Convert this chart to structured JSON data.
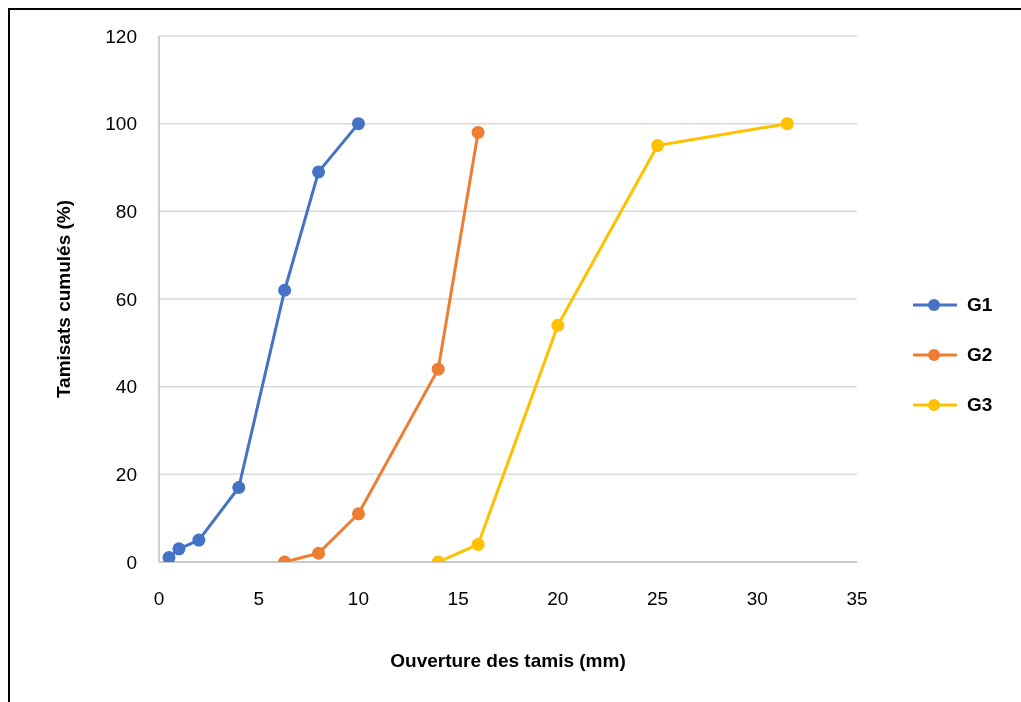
{
  "chart_data": {
    "type": "line",
    "xlabel": "Ouverture des tamis (mm)",
    "ylabel": "Tamisats cumulés (%)",
    "xlim": [
      0,
      35
    ],
    "xticks": [
      0,
      5,
      10,
      15,
      20,
      25,
      30,
      35
    ],
    "ylim": [
      0,
      120
    ],
    "yticks": [
      0,
      20,
      40,
      60,
      80,
      100,
      120
    ],
    "grid": "y",
    "legend": "right",
    "marker": "circle",
    "line_style": "solid",
    "series": [
      {
        "name": "G1",
        "color": "#4472c4",
        "x": [
          0.5,
          1,
          2,
          4,
          6.3,
          8,
          10
        ],
        "values": [
          1,
          3,
          5,
          17,
          62,
          89,
          100
        ]
      },
      {
        "name": "G2",
        "color": "#ed7d31",
        "x": [
          6.3,
          8,
          10,
          14,
          16
        ],
        "values": [
          0,
          2,
          11,
          44,
          98
        ]
      },
      {
        "name": "G3",
        "color": "#ffc000",
        "x": [
          14,
          16,
          20,
          25,
          31.5
        ],
        "values": [
          0,
          4,
          54,
          95,
          100
        ]
      }
    ]
  }
}
